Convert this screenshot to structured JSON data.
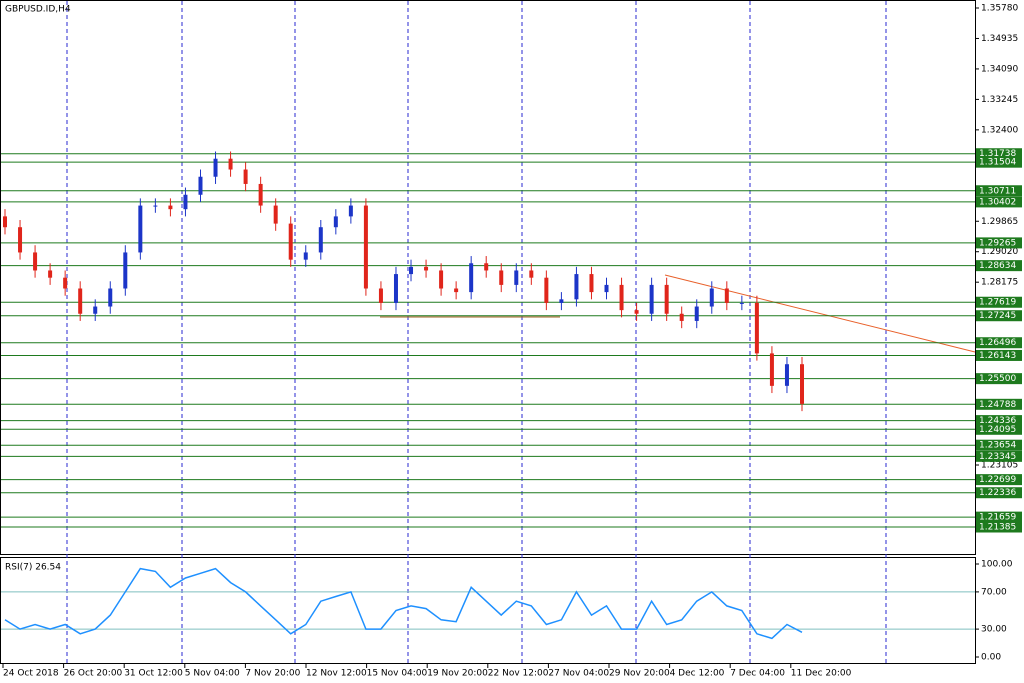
{
  "chart_data": [
    {
      "type": "candlestick",
      "title": "GBPUSD.ID,H4",
      "open": [
        1.3,
        1.297,
        1.29,
        1.285,
        1.283,
        1.28,
        1.273,
        1.275,
        1.28,
        1.29,
        1.303,
        1.303,
        1.302,
        1.306,
        1.311,
        1.316,
        1.313,
        1.309,
        1.303,
        1.298,
        1.288,
        1.29,
        1.297,
        1.3,
        1.303,
        1.28,
        1.276,
        1.284,
        1.286,
        1.285,
        1.28,
        1.279,
        1.287,
        1.285,
        1.281,
        1.285,
        1.283,
        1.276,
        1.277,
        1.284,
        1.279,
        1.281,
        1.274,
        1.273,
        1.281,
        1.273,
        1.271,
        1.275,
        1.28,
        1.276,
        1.276,
        1.262,
        1.253,
        1.259
      ],
      "high": [
        1.302,
        1.299,
        1.292,
        1.287,
        1.285,
        1.282,
        1.277,
        1.282,
        1.292,
        1.305,
        1.305,
        1.305,
        1.308,
        1.313,
        1.318,
        1.318,
        1.315,
        1.311,
        1.305,
        1.3,
        1.292,
        1.299,
        1.302,
        1.305,
        1.305,
        1.282,
        1.286,
        1.288,
        1.288,
        1.287,
        1.282,
        1.289,
        1.289,
        1.287,
        1.287,
        1.287,
        1.285,
        1.279,
        1.286,
        1.286,
        1.283,
        1.283,
        1.276,
        1.283,
        1.283,
        1.275,
        1.277,
        1.282,
        1.282,
        1.278,
        1.278,
        1.264,
        1.261,
        1.261
      ],
      "low": [
        1.295,
        1.288,
        1.283,
        1.281,
        1.278,
        1.271,
        1.271,
        1.273,
        1.278,
        1.288,
        1.301,
        1.3,
        1.3,
        1.304,
        1.309,
        1.311,
        1.307,
        1.301,
        1.296,
        1.286,
        1.286,
        1.288,
        1.295,
        1.298,
        1.278,
        1.274,
        1.274,
        1.282,
        1.283,
        1.278,
        1.277,
        1.277,
        1.283,
        1.279,
        1.279,
        1.281,
        1.274,
        1.274,
        1.275,
        1.277,
        1.277,
        1.272,
        1.271,
        1.271,
        1.271,
        1.269,
        1.269,
        1.273,
        1.274,
        1.274,
        1.26,
        1.251,
        1.251,
        1.246
      ],
      "close": [
        1.297,
        1.29,
        1.285,
        1.283,
        1.28,
        1.273,
        1.275,
        1.28,
        1.29,
        1.303,
        1.303,
        1.302,
        1.306,
        1.311,
        1.316,
        1.313,
        1.309,
        1.303,
        1.298,
        1.288,
        1.29,
        1.297,
        1.3,
        1.303,
        1.28,
        1.276,
        1.284,
        1.286,
        1.285,
        1.28,
        1.279,
        1.287,
        1.285,
        1.281,
        1.285,
        1.283,
        1.276,
        1.277,
        1.284,
        1.279,
        1.281,
        1.274,
        1.273,
        1.281,
        1.273,
        1.271,
        1.275,
        1.28,
        1.276,
        1.276,
        1.262,
        1.253,
        1.259,
        1.248
      ],
      "up_color": "#1c35c8",
      "down_color": "#e0251b",
      "ylim": [
        1.21385,
        1.3578
      ],
      "yticks": [
        {
          "value": 1.3578,
          "label": "1.35780"
        },
        1.34935,
        {
          "value": 1.3409,
          "label": "1.34090"
        },
        1.33245,
        {
          "value": 1.324,
          "label": "1.32400"
        },
        1.29865,
        {
          "value": 1.2902,
          "label": "1.29020"
        },
        1.28175,
        1.23105
      ],
      "levels": [
        1.31738,
        1.31504,
        1.30711,
        1.30402,
        1.29265,
        1.28634,
        1.27619,
        1.27245,
        1.26496,
        1.26143,
        {
          "value": 1.255,
          "label": "1.25500"
        },
        1.24788,
        1.24336,
        1.24095,
        1.23654,
        1.23345,
        1.22699,
        1.22336,
        1.21659,
        1.21385
      ],
      "level_color": "#1e7a1e"
    },
    {
      "type": "line",
      "title": "RSI(7) 26.54",
      "values": [
        40,
        30,
        35,
        30,
        35,
        25,
        30,
        45,
        70,
        95,
        92,
        75,
        85,
        90,
        95,
        80,
        70,
        55,
        40,
        25,
        35,
        60,
        65,
        70,
        30,
        30,
        50,
        55,
        52,
        40,
        38,
        75,
        60,
        45,
        60,
        55,
        35,
        40,
        70,
        45,
        55,
        30,
        30,
        60,
        35,
        40,
        60,
        70,
        55,
        50,
        25,
        20,
        35,
        26.54
      ],
      "color": "#1e90ff",
      "ylim": [
        0,
        100
      ],
      "yticks": [
        {
          "value": 100,
          "label": "100.00"
        },
        {
          "value": 70,
          "label": "70.00"
        },
        {
          "value": 30,
          "label": "30.00"
        },
        {
          "value": 0,
          "label": "0.00"
        }
      ],
      "levels": [
        70,
        30
      ]
    },
    {
      "type": "time-axis",
      "labels": [
        "24 Oct 2018",
        "26 Oct 20:00",
        "31 Oct 12:00",
        "5 Nov 04:00",
        "7 Nov 20:00",
        "12 Nov 12:00",
        "15 Nov 04:00",
        "19 Nov 20:00",
        "22 Nov 12:00",
        "27 Nov 04:00",
        "29 Nov 20:00",
        "4 Dec 12:00",
        "7 Dec 04:00",
        "11 Dec 20:00"
      ]
    }
  ]
}
